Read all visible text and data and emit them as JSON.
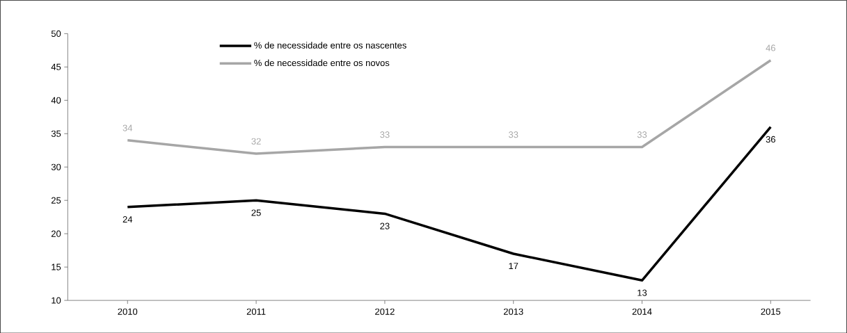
{
  "chart_data": {
    "type": "line",
    "categories": [
      "2010",
      "2011",
      "2012",
      "2013",
      "2014",
      "2015"
    ],
    "series": [
      {
        "name": "% de necessidade entre os nascentes",
        "color": "#000000",
        "values": [
          24,
          25,
          23,
          17,
          13,
          36
        ]
      },
      {
        "name": "% de necessidade entre os novos",
        "color": "#a6a6a6",
        "values": [
          34,
          32,
          33,
          33,
          33,
          46
        ]
      }
    ],
    "ylim": [
      10,
      50
    ],
    "yticks": [
      10,
      15,
      20,
      25,
      30,
      35,
      40,
      45,
      50
    ],
    "data_labels": true,
    "legend": "top",
    "grid": false,
    "marker": "none",
    "line_style": "solid"
  }
}
